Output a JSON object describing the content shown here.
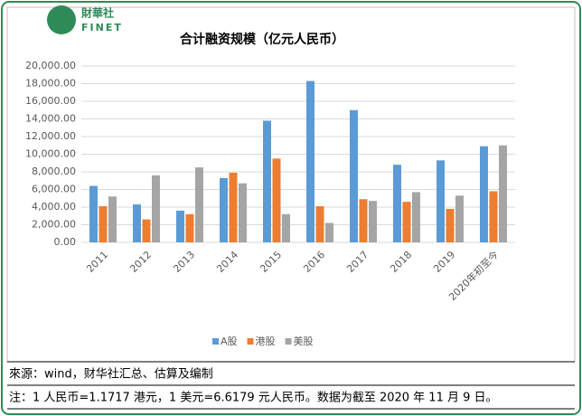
{
  "brand": {
    "name": "財華社",
    "latin": "FINET"
  },
  "chart_data": {
    "type": "bar",
    "title": "合计融资规模（亿元人民币）",
    "categories": [
      "2011",
      "2012",
      "2013",
      "2014",
      "2015",
      "2016",
      "2017",
      "2018",
      "2019",
      "2020年初至今"
    ],
    "series": [
      {
        "name": "A股",
        "color": "#5b9bd5",
        "values": [
          6400,
          4300,
          3600,
          7300,
          13800,
          18300,
          15000,
          8800,
          9300,
          10900
        ]
      },
      {
        "name": "港股",
        "color": "#ed7d31",
        "values": [
          4100,
          2600,
          3200,
          7900,
          9500,
          4100,
          4900,
          4600,
          3800,
          5800
        ]
      },
      {
        "name": "美股",
        "color": "#a5a5a5",
        "values": [
          5200,
          7600,
          8500,
          6700,
          3200,
          2200,
          4700,
          5700,
          5300,
          11000
        ]
      }
    ],
    "ylim": [
      0,
      20000
    ],
    "yticks": [
      {
        "value": 0,
        "label": "0.00"
      },
      {
        "value": 2000,
        "label": "2,000.00"
      },
      {
        "value": 4000,
        "label": "4,000.00"
      },
      {
        "value": 6000,
        "label": "6,000.00"
      },
      {
        "value": 8000,
        "label": "8,000.00"
      },
      {
        "value": 10000,
        "label": "10,000.00"
      },
      {
        "value": 12000,
        "label": "12,000.00"
      },
      {
        "value": 14000,
        "label": "14,000.00"
      },
      {
        "value": 16000,
        "label": "16,000.00"
      },
      {
        "value": 18000,
        "label": "18,000.00"
      },
      {
        "value": 20000,
        "label": "20,000.00"
      }
    ],
    "grid": true,
    "legend": "bottom"
  },
  "footer": {
    "source": "來源：wind，财华社汇总、估算及编制",
    "note": "注：1 人民币=1.1717 港元，1 美元=6.6179 元人民币。数据为截至 2020 年 11 月 9 日。"
  }
}
